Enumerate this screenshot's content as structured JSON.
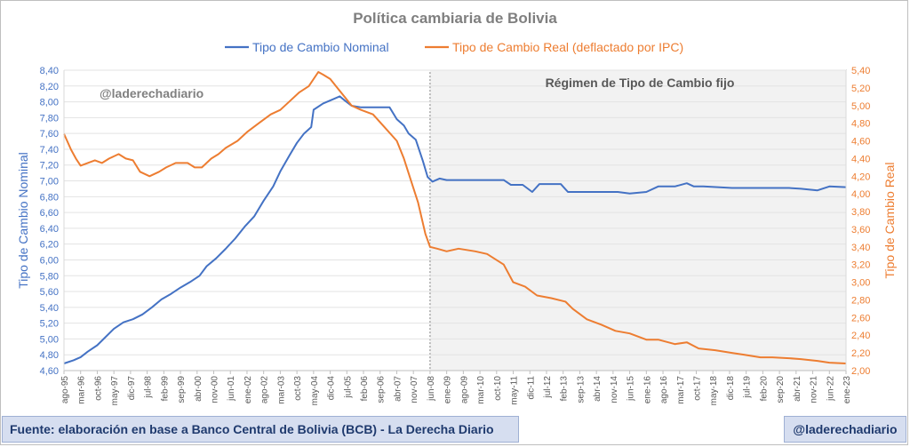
{
  "chart_data": {
    "type": "line",
    "title": "Política cambiaria de Bolivia",
    "watermark": "@laderechadiario",
    "region_label": "Régimen de Tipo de Cambio fijo",
    "region_start": "2008-06",
    "ylabel_left": "Tipo de Cambio Nominal",
    "ylabel_right": "Tipo de Cambio Real",
    "ylim_left": [
      4.6,
      8.4
    ],
    "ylim_right": [
      2.0,
      5.4
    ],
    "yticks_left": [
      "4,60",
      "4,80",
      "5,00",
      "5,20",
      "5,40",
      "5,60",
      "5,80",
      "6,00",
      "6,20",
      "6,40",
      "6,60",
      "6,80",
      "7,00",
      "7,20",
      "7,40",
      "7,60",
      "7,80",
      "8,00",
      "8,20",
      "8,40"
    ],
    "yticks_right": [
      "2,00",
      "2,20",
      "2,40",
      "2,60",
      "2,80",
      "3,00",
      "3,20",
      "3,40",
      "3,60",
      "3,80",
      "4,00",
      "4,20",
      "4,40",
      "4,60",
      "4,80",
      "5,00",
      "5,20",
      "5,40"
    ],
    "xlim": [
      "1995-08",
      "2023-01"
    ],
    "xticks": [
      "ago-95",
      "mar-96",
      "oct-96",
      "may-97",
      "dic-97",
      "jul-98",
      "feb-99",
      "sep-99",
      "abr-00",
      "nov-00",
      "jun-01",
      "ene-02",
      "ago-02",
      "mar-03",
      "oct-03",
      "may-04",
      "dic-04",
      "jul-05",
      "feb-06",
      "sep-06",
      "abr-07",
      "nov-07",
      "jun-08",
      "ene-09",
      "ago-09",
      "mar-10",
      "oct-10",
      "may-11",
      "dic-11",
      "jul-12",
      "feb-13",
      "sep-13",
      "abr-14",
      "nov-14",
      "jun-15",
      "ene-16",
      "ago-16",
      "mar-17",
      "oct-17",
      "may-18",
      "dic-18",
      "jul-19",
      "feb-20",
      "sep-20",
      "abr-21",
      "nov-21",
      "jun-22",
      "ene-23"
    ],
    "grid": true,
    "legend_position": "top",
    "series": [
      {
        "name": "Tipo de Cambio Nominal",
        "axis": "left",
        "color": "#4472c4",
        "points": [
          [
            "1995-08",
            4.69
          ],
          [
            "1995-12",
            4.73
          ],
          [
            "1996-03",
            4.77
          ],
          [
            "1996-06",
            4.84
          ],
          [
            "1996-10",
            4.92
          ],
          [
            "1997-01",
            5.01
          ],
          [
            "1997-05",
            5.13
          ],
          [
            "1997-09",
            5.21
          ],
          [
            "1998-01",
            5.25
          ],
          [
            "1998-05",
            5.31
          ],
          [
            "1998-09",
            5.4
          ],
          [
            "1999-01",
            5.5
          ],
          [
            "1999-05",
            5.57
          ],
          [
            "1999-09",
            5.65
          ],
          [
            "2000-01",
            5.72
          ],
          [
            "2000-05",
            5.8
          ],
          [
            "2000-08",
            5.92
          ],
          [
            "2000-12",
            6.02
          ],
          [
            "2001-04",
            6.14
          ],
          [
            "2001-08",
            6.27
          ],
          [
            "2001-12",
            6.42
          ],
          [
            "2002-04",
            6.55
          ],
          [
            "2002-08",
            6.75
          ],
          [
            "2002-12",
            6.93
          ],
          [
            "2003-03",
            7.12
          ],
          [
            "2003-07",
            7.33
          ],
          [
            "2003-10",
            7.48
          ],
          [
            "2004-01",
            7.6
          ],
          [
            "2004-04",
            7.68
          ],
          [
            "2004-05",
            7.9
          ],
          [
            "2004-09",
            7.98
          ],
          [
            "2005-01",
            8.03
          ],
          [
            "2005-04",
            8.07
          ],
          [
            "2005-06",
            8.02
          ],
          [
            "2005-09",
            7.95
          ],
          [
            "2006-01",
            7.93
          ],
          [
            "2006-06",
            7.93
          ],
          [
            "2007-01",
            7.93
          ],
          [
            "2007-04",
            7.78
          ],
          [
            "2007-07",
            7.7
          ],
          [
            "2007-09",
            7.6
          ],
          [
            "2007-12",
            7.52
          ],
          [
            "2008-03",
            7.25
          ],
          [
            "2008-05",
            7.05
          ],
          [
            "2008-07",
            6.99
          ],
          [
            "2008-10",
            7.03
          ],
          [
            "2009-01",
            7.01
          ],
          [
            "2010-01",
            7.01
          ],
          [
            "2011-01",
            7.01
          ],
          [
            "2011-04",
            6.95
          ],
          [
            "2011-09",
            6.95
          ],
          [
            "2012-01",
            6.86
          ],
          [
            "2012-04",
            6.96
          ],
          [
            "2013-01",
            6.96
          ],
          [
            "2013-04",
            6.86
          ],
          [
            "2014-01",
            6.86
          ],
          [
            "2015-01",
            6.86
          ],
          [
            "2015-06",
            6.84
          ],
          [
            "2016-01",
            6.86
          ],
          [
            "2016-06",
            6.93
          ],
          [
            "2017-01",
            6.93
          ],
          [
            "2017-06",
            6.97
          ],
          [
            "2017-09",
            6.93
          ],
          [
            "2018-01",
            6.93
          ],
          [
            "2019-01",
            6.91
          ],
          [
            "2020-01",
            6.91
          ],
          [
            "2021-01",
            6.91
          ],
          [
            "2021-06",
            6.9
          ],
          [
            "2022-01",
            6.88
          ],
          [
            "2022-06",
            6.93
          ],
          [
            "2023-01",
            6.92
          ]
        ]
      },
      {
        "name": "Tipo de Cambio Real (deflactado por IPC)",
        "axis": "right",
        "color": "#ed7d31",
        "points": [
          [
            "1995-08",
            4.68
          ],
          [
            "1995-11",
            4.5
          ],
          [
            "1996-01",
            4.4
          ],
          [
            "1996-03",
            4.32
          ],
          [
            "1996-06",
            4.35
          ],
          [
            "1996-09",
            4.38
          ],
          [
            "1996-12",
            4.35
          ],
          [
            "1997-03",
            4.4
          ],
          [
            "1997-07",
            4.45
          ],
          [
            "1997-10",
            4.4
          ],
          [
            "1998-01",
            4.38
          ],
          [
            "1998-04",
            4.25
          ],
          [
            "1998-08",
            4.2
          ],
          [
            "1998-12",
            4.25
          ],
          [
            "1999-03",
            4.3
          ],
          [
            "1999-07",
            4.35
          ],
          [
            "1999-12",
            4.35
          ],
          [
            "2000-03",
            4.3
          ],
          [
            "2000-06",
            4.3
          ],
          [
            "2000-10",
            4.4
          ],
          [
            "2001-01",
            4.45
          ],
          [
            "2001-04",
            4.52
          ],
          [
            "2001-09",
            4.6
          ],
          [
            "2002-01",
            4.7
          ],
          [
            "2002-06",
            4.8
          ],
          [
            "2002-11",
            4.9
          ],
          [
            "2003-03",
            4.95
          ],
          [
            "2003-07",
            5.05
          ],
          [
            "2003-11",
            5.15
          ],
          [
            "2004-03",
            5.22
          ],
          [
            "2004-07",
            5.38
          ],
          [
            "2004-09",
            5.35
          ],
          [
            "2004-12",
            5.3
          ],
          [
            "2005-03",
            5.2
          ],
          [
            "2005-06",
            5.1
          ],
          [
            "2005-09",
            5.0
          ],
          [
            "2006-01",
            4.95
          ],
          [
            "2006-06",
            4.9
          ],
          [
            "2006-11",
            4.75
          ],
          [
            "2007-04",
            4.6
          ],
          [
            "2007-07",
            4.4
          ],
          [
            "2007-10",
            4.15
          ],
          [
            "2008-01",
            3.9
          ],
          [
            "2008-04",
            3.55
          ],
          [
            "2008-06",
            3.4
          ],
          [
            "2008-09",
            3.38
          ],
          [
            "2009-01",
            3.35
          ],
          [
            "2009-06",
            3.38
          ],
          [
            "2010-01",
            3.35
          ],
          [
            "2010-06",
            3.32
          ],
          [
            "2011-01",
            3.2
          ],
          [
            "2011-05",
            3.0
          ],
          [
            "2011-10",
            2.95
          ],
          [
            "2012-03",
            2.85
          ],
          [
            "2012-09",
            2.82
          ],
          [
            "2013-03",
            2.78
          ],
          [
            "2013-06",
            2.7
          ],
          [
            "2013-12",
            2.58
          ],
          [
            "2014-06",
            2.52
          ],
          [
            "2014-12",
            2.45
          ],
          [
            "2015-06",
            2.42
          ],
          [
            "2016-01",
            2.35
          ],
          [
            "2016-06",
            2.35
          ],
          [
            "2017-01",
            2.3
          ],
          [
            "2017-06",
            2.32
          ],
          [
            "2017-11",
            2.25
          ],
          [
            "2018-06",
            2.23
          ],
          [
            "2019-01",
            2.2
          ],
          [
            "2019-06",
            2.18
          ],
          [
            "2020-01",
            2.15
          ],
          [
            "2020-06",
            2.15
          ],
          [
            "2021-01",
            2.14
          ],
          [
            "2021-06",
            2.13
          ],
          [
            "2022-01",
            2.11
          ],
          [
            "2022-06",
            2.09
          ],
          [
            "2023-01",
            2.08
          ]
        ]
      }
    ]
  },
  "footer": {
    "source": "Fuente: elaboración en base a Banco Central de Bolivia (BCB) - La Derecha Diario",
    "handle": "@laderechadiario"
  }
}
